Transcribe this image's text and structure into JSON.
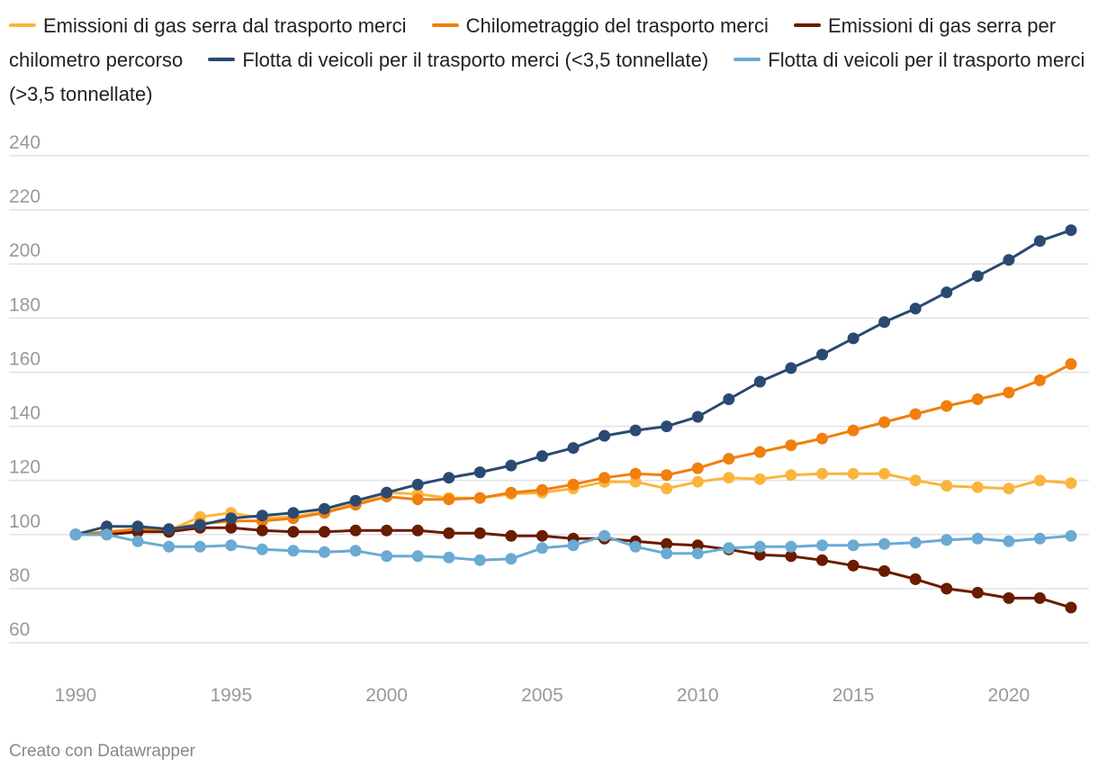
{
  "chart_data": {
    "type": "line",
    "title": "",
    "xlabel": "",
    "ylabel": "",
    "x": [
      1990,
      1991,
      1992,
      1993,
      1994,
      1995,
      1996,
      1997,
      1998,
      1999,
      2000,
      2001,
      2002,
      2003,
      2004,
      2005,
      2006,
      2007,
      2008,
      2009,
      2010,
      2011,
      2012,
      2013,
      2014,
      2015,
      2016,
      2017,
      2018,
      2019,
      2020,
      2021,
      2022
    ],
    "ylim": [
      50,
      240
    ],
    "yticks": [
      60,
      80,
      100,
      120,
      140,
      160,
      180,
      200,
      220,
      240
    ],
    "xticks": [
      1990,
      1995,
      2000,
      2005,
      2010,
      2015,
      2020
    ],
    "xlim": [
      1990,
      2022
    ],
    "series": [
      {
        "name": "Emissioni di gas serra dal trasporto merci",
        "color": "#fbb53d",
        "values": [
          100,
          101,
          101.5,
          101.5,
          106.5,
          108,
          106,
          106.5,
          108.5,
          111.5,
          115.5,
          115,
          113.5,
          113.5,
          115,
          115.5,
          117,
          119.5,
          119.5,
          117,
          119.5,
          121,
          120.5,
          122,
          122.5,
          122.5,
          122.5,
          120,
          118,
          117.5,
          117,
          120,
          119
        ]
      },
      {
        "name": "Chilometraggio del trasporto merci",
        "color": "#f07f0d",
        "values": [
          100,
          101,
          102,
          102,
          104,
          105,
          105,
          106,
          108,
          111,
          114,
          113,
          113,
          113.5,
          115.5,
          116.5,
          118.5,
          121,
          122.5,
          122,
          124.5,
          128,
          130.5,
          133,
          135.5,
          138.5,
          141.5,
          144.5,
          147.5,
          150,
          152.5,
          157,
          163
        ]
      },
      {
        "name": "Emissioni di gas serra per chilometro percorso",
        "color": "#6b1b00",
        "values": [
          100,
          100,
          101,
          101,
          102.5,
          102.5,
          101.5,
          101,
          101,
          101.5,
          101.5,
          101.5,
          100.5,
          100.5,
          99.5,
          99.5,
          98.5,
          98.5,
          97.5,
          96.5,
          96,
          94.5,
          92.5,
          92,
          90.5,
          88.5,
          86.5,
          83.5,
          80,
          78.5,
          76.5,
          76.5,
          73
        ]
      },
      {
        "name": "Flotta di veicoli per il trasporto merci (<3,5 tonnellate)",
        "color": "#2a4a72",
        "values": [
          100,
          103,
          103,
          102,
          103.5,
          106,
          107,
          108,
          109.5,
          112.5,
          115.5,
          118.5,
          121,
          123,
          125.5,
          129,
          132,
          136.5,
          138.5,
          140,
          143.5,
          150,
          156.5,
          161.5,
          166.5,
          172.5,
          178.5,
          183.5,
          189.5,
          195.5,
          201.5,
          208.5,
          212.5
        ]
      },
      {
        "name": "Flotta di veicoli per il trasporto merci (>3,5 tonnellate)",
        "color": "#6aaad3",
        "values": [
          100,
          100,
          97.5,
          95.5,
          95.5,
          96,
          94.5,
          94,
          93.5,
          94,
          92,
          92,
          91.5,
          90.5,
          91,
          95,
          96,
          99.5,
          95.5,
          93,
          93,
          95,
          95.5,
          95.5,
          96,
          96,
          96.5,
          97,
          98,
          98.5,
          97.5,
          98.5,
          99.5
        ]
      }
    ]
  },
  "footer": {
    "credit": "Creato con Datawrapper"
  }
}
